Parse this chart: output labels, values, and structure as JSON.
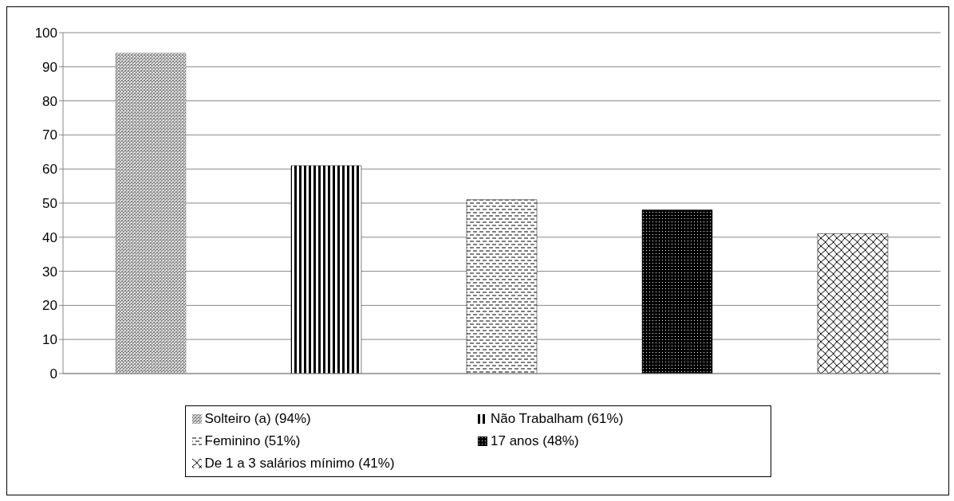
{
  "chart_data": {
    "type": "bar",
    "categories": [
      null,
      null,
      null,
      null,
      null
    ],
    "stacked": true,
    "ylim": [
      0,
      100
    ],
    "yticks": [
      0,
      10,
      20,
      30,
      40,
      50,
      60,
      70,
      80,
      90,
      100
    ],
    "grid": "y",
    "legend": "bottom",
    "series": [
      {
        "name": "Solteiro (a) (94%)",
        "color": "#7f7f7f",
        "values": [
          94,
          null,
          null,
          null,
          null
        ]
      },
      {
        "name": "Não Trabalham (61%)",
        "color": "#000000",
        "values": [
          null,
          61,
          null,
          null,
          null
        ]
      },
      {
        "name": "Feminino (51%)",
        "color": "#000000",
        "values": [
          null,
          null,
          51,
          null,
          null
        ]
      },
      {
        "name": "17 anos (48%)",
        "color": "#000000",
        "values": [
          null,
          null,
          null,
          48,
          null
        ]
      },
      {
        "name": "De 1 a 3 salários mínimo (41%)",
        "color": "#000000",
        "values": [
          null,
          null,
          null,
          null,
          41
        ]
      }
    ]
  }
}
